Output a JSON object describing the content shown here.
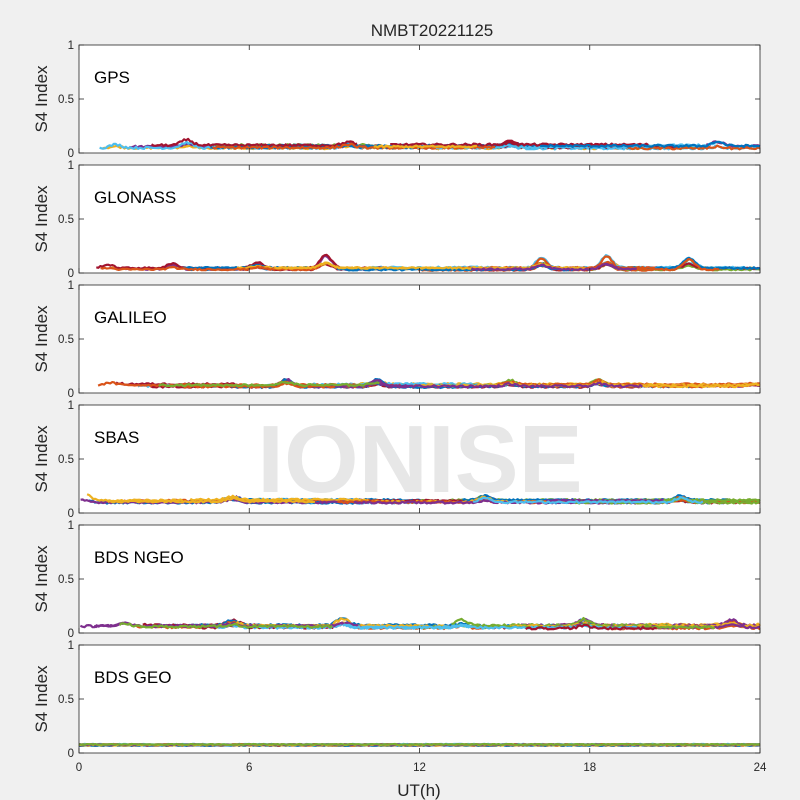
{
  "chart_data": {
    "type": "scatter",
    "title": "NMBT20221125",
    "xlabel": "UT(h)",
    "ylabel": "S4 Index",
    "xlim": [
      0,
      24
    ],
    "ylim": [
      0,
      1
    ],
    "x_ticks": [
      "0",
      "6",
      "12",
      "18",
      "24"
    ],
    "y_ticks": [
      "0",
      "0.5",
      "1"
    ],
    "watermark": "IONISE",
    "colors": [
      "#0072BD",
      "#D95319",
      "#EDB120",
      "#7E2F8E",
      "#77AC30",
      "#4DBEEE",
      "#A2142F"
    ],
    "panels": [
      {
        "label": "GPS",
        "baseline": 0.06,
        "spread": 0.035,
        "bumps": [
          [
            1.3,
            0.09
          ],
          [
            3.8,
            0.11
          ],
          [
            9.5,
            0.09
          ],
          [
            15.2,
            0.1
          ],
          [
            22.5,
            0.1
          ]
        ]
      },
      {
        "label": "GLONASS",
        "baseline": 0.04,
        "spread": 0.025,
        "bumps": [
          [
            1.0,
            0.07
          ],
          [
            3.3,
            0.08
          ],
          [
            6.3,
            0.09
          ],
          [
            8.7,
            0.16
          ],
          [
            16.3,
            0.14
          ],
          [
            18.6,
            0.16
          ],
          [
            21.5,
            0.13
          ]
        ]
      },
      {
        "label": "GALILEO",
        "baseline": 0.07,
        "spread": 0.03,
        "bumps": [
          [
            1.1,
            0.12
          ],
          [
            7.3,
            0.14
          ],
          [
            10.5,
            0.13
          ],
          [
            15.2,
            0.12
          ],
          [
            18.3,
            0.13
          ],
          [
            23.8,
            0.09
          ]
        ]
      },
      {
        "label": "SBAS",
        "baseline": 0.11,
        "spread": 0.03,
        "bumps": [
          [
            0.2,
            0.17
          ],
          [
            5.4,
            0.18
          ],
          [
            14.3,
            0.15
          ],
          [
            21.2,
            0.15
          ]
        ]
      },
      {
        "label": "BDS NGEO",
        "baseline": 0.06,
        "spread": 0.035,
        "bumps": [
          [
            1.6,
            0.13
          ],
          [
            5.4,
            0.11
          ],
          [
            9.3,
            0.13
          ],
          [
            13.5,
            0.11
          ],
          [
            17.8,
            0.12
          ],
          [
            23.0,
            0.11
          ]
        ]
      },
      {
        "label": "BDS GEO",
        "baseline": 0.075,
        "spread": 0.012,
        "bumps": []
      }
    ]
  }
}
